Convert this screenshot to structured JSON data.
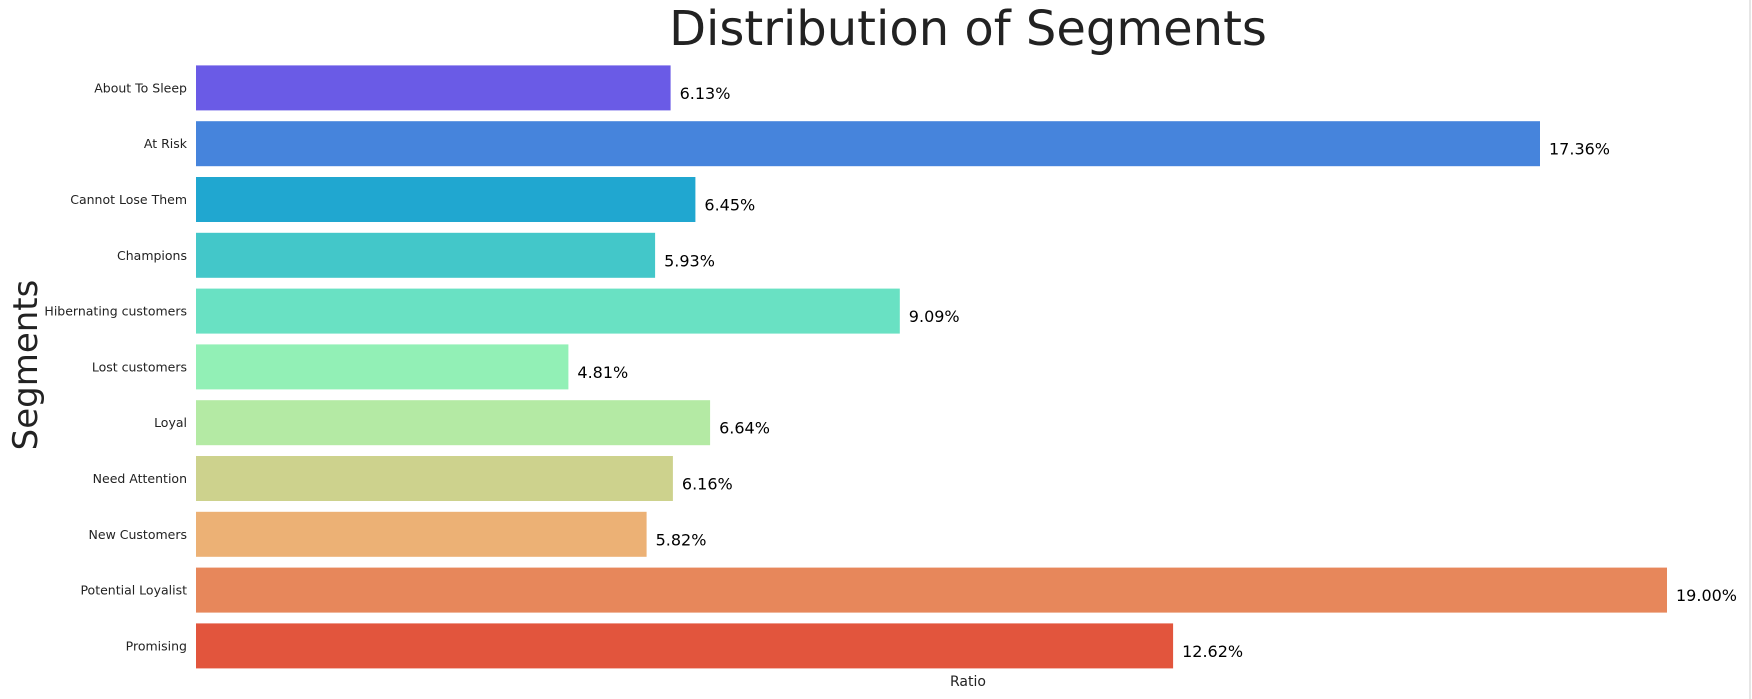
{
  "chart_data": {
    "type": "bar",
    "orientation": "horizontal",
    "title": "Distribution of Segments",
    "xlabel": "Ratio",
    "ylabel": "Segments",
    "grid": false,
    "categories": [
      "About To Sleep",
      "At Risk",
      "Cannot Lose Them",
      "Champions",
      "Hibernating customers",
      "Lost customers",
      "Loyal",
      "Need Attention",
      "New Customers",
      "Potential Loyalist",
      "Promising"
    ],
    "values": [
      6.13,
      17.36,
      6.45,
      5.93,
      9.09,
      4.81,
      6.64,
      6.16,
      5.82,
      19.0,
      12.62
    ],
    "data_labels": [
      "6.13%",
      "17.36%",
      "6.45%",
      "5.93%",
      "9.09%",
      "4.81%",
      "6.64%",
      "6.16%",
      "5.82%",
      "19.00%",
      "12.62%"
    ],
    "colors": [
      "#6a5be6",
      "#4684dc",
      "#20a7d0",
      "#43c7c9",
      "#69e1c3",
      "#92f0b6",
      "#b4eaa4",
      "#cdd28d",
      "#ecb175",
      "#e7875b",
      "#e2553d"
    ],
    "xlim": [
      0,
      19.0
    ]
  }
}
